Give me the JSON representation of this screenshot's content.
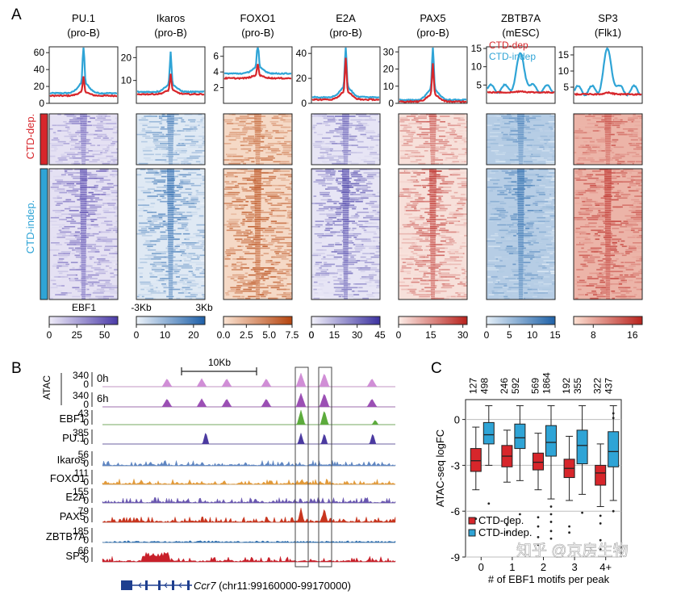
{
  "figure": {
    "panel_labels": [
      "A",
      "B",
      "C"
    ],
    "watermark": "知乎 @京房生物"
  },
  "panelA": {
    "columns": [
      {
        "factor": "PU.1",
        "cell": "(pro-B)",
        "yticks": [
          "0",
          "20",
          "40",
          "60"
        ],
        "ymax": 65,
        "cbar_ticks": [
          "0",
          "25",
          "50"
        ],
        "cbar_max": 62,
        "heat_color": "#4a3aa8",
        "heat_light": "#f2f0fa",
        "dep_peak": 27,
        "indep_peak": 62,
        "dep_base": 9,
        "indep_base": 12,
        "peak_shape": "sharp"
      },
      {
        "factor": "Ikaros",
        "cell": "(pro-B)",
        "yticks": [
          "10",
          "20"
        ],
        "ymax": 24,
        "cbar_ticks": [
          "0",
          "10",
          "20"
        ],
        "cbar_max": 24,
        "heat_color": "#1d5fa8",
        "heat_light": "#f0f5fb",
        "dep_peak": 11,
        "indep_peak": 19,
        "dep_base": 4,
        "indep_base": 5,
        "peak_shape": "sharp"
      },
      {
        "factor": "FOXO1",
        "cell": "(pro-B)",
        "yticks": [
          "2",
          "4",
          "6"
        ],
        "ymax": 7,
        "cbar_ticks": [
          "0.0",
          "2.5",
          "5.0",
          "7.5"
        ],
        "cbar_max": 7.5,
        "heat_color": "#b5440e",
        "heat_light": "#fbe6d6",
        "dep_peak": 4.7,
        "indep_peak": 7.2,
        "dep_base": 3.2,
        "indep_base": 3.8,
        "peak_shape": "sharp"
      },
      {
        "factor": "E2A",
        "cell": "(pro-B)",
        "yticks": [
          "0",
          "20",
          "40"
        ],
        "ymax": 44,
        "cbar_ticks": [
          "0",
          "15",
          "30",
          "45"
        ],
        "cbar_max": 45,
        "heat_color": "#3c32a0",
        "heat_light": "#f6f5fc",
        "dep_peak": 30,
        "indep_peak": 40,
        "dep_base": 3,
        "indep_base": 5,
        "peak_shape": "sharp"
      },
      {
        "factor": "PAX5",
        "cell": "(pro-B)",
        "yticks": [
          "0",
          "10",
          "20",
          "30"
        ],
        "ymax": 32,
        "cbar_ticks": [
          "0",
          "15",
          "30"
        ],
        "cbar_max": 32,
        "heat_color": "#b8221d",
        "heat_light": "#fdf0ea",
        "dep_peak": 19,
        "indep_peak": 29,
        "dep_base": 1,
        "indep_base": 2,
        "peak_shape": "sharp"
      },
      {
        "factor": "ZBTB7A",
        "cell": "(mESC)",
        "yticks": [
          "5",
          "10",
          "15"
        ],
        "ymax": 15,
        "cbar_ticks": [
          "0",
          "5",
          "10",
          "15"
        ],
        "cbar_max": 15,
        "heat_color": "#1f62a8",
        "heat_light": "#e8f1f9",
        "dep_peak": 3.3,
        "indep_peak": 13,
        "dep_base": 3,
        "indep_base": 4,
        "peak_shape": "broad"
      },
      {
        "factor": "SP3",
        "cell": "(Flk1)",
        "yticks": [
          "5",
          "10",
          "15"
        ],
        "ymax": 17,
        "cbar_ticks": [
          "8",
          "16"
        ],
        "cbar_max": 18,
        "heat_color": "#b8221d",
        "heat_light": "#fde4d6",
        "dep_peak": 3.3,
        "indep_peak": 16,
        "dep_base": 2.8,
        "indep_base": 4,
        "peak_shape": "broad"
      }
    ],
    "cbar_zero_labels": {
      "3": "0",
      "6": ""
    },
    "legend": [
      {
        "label": "CTD-dep",
        "color": "#d7262b"
      },
      {
        "label": "CTD-indep",
        "color": "#2fa4d6"
      }
    ],
    "group_labels": {
      "dep": "CTD-dep.",
      "indep": "CTD-indep."
    },
    "group_colors": {
      "dep": "#d7262b",
      "indep": "#2fa4d6"
    },
    "bottom_labels": {
      "ebf1": "EBF1",
      "left": "-3Kb",
      "right": "3Kb"
    }
  },
  "panelB": {
    "scale_label": "10Kb",
    "atac_label": "ATAC",
    "tracks": [
      {
        "name": "",
        "sub": "0h",
        "max": "340",
        "color": "#d08ed6"
      },
      {
        "name": "",
        "sub": "6h",
        "max": "340",
        "color": "#9b4fb4"
      },
      {
        "name": "EBF1",
        "sub": "",
        "max": "43",
        "color": "#5cab3c"
      },
      {
        "name": "PU.1",
        "sub": "",
        "max": "385",
        "color": "#4b3aa0"
      },
      {
        "name": "Ikaros",
        "sub": "",
        "max": "56",
        "color": "#5f86c2"
      },
      {
        "name": "FOXO1",
        "sub": "",
        "max": "111",
        "color": "#e29a3a"
      },
      {
        "name": "E2A",
        "sub": "",
        "max": "155",
        "color": "#6a58b0"
      },
      {
        "name": "PAX5",
        "sub": "",
        "max": "79",
        "color": "#c8351e"
      },
      {
        "name": "ZBTB7A",
        "sub": "",
        "max": "185",
        "color": "#2e6fb0"
      },
      {
        "name": "SP3",
        "sub": "",
        "max": "66",
        "color": "#c8202a"
      }
    ],
    "zero_label": "0",
    "gene": "Ccr7",
    "locus": " (chr11:99160000-99170000)"
  },
  "panelC": {
    "chart_data": {
      "type": "box",
      "xlabel": "# of EBF1 motifs per peak",
      "ylabel": "ATAC-seq logFC",
      "categories": [
        "0",
        "1",
        "2",
        "3",
        "4+"
      ],
      "ylim": [
        -9,
        1.3
      ],
      "yticks": [
        0,
        -3,
        -6,
        -9
      ],
      "counts": [
        [
          "127",
          "498"
        ],
        [
          "246",
          "592"
        ],
        [
          "569",
          "1864"
        ],
        [
          "192",
          "355"
        ],
        [
          "322",
          "437"
        ]
      ],
      "series": [
        {
          "name": "CTD-dep.",
          "color": "#d7262b",
          "boxes": [
            {
              "q1": -3.4,
              "med": -2.7,
              "q3": -1.9,
              "wlo": -4.6,
              "whi": -0.5,
              "out": [
                -6.5
              ]
            },
            {
              "q1": -3.1,
              "med": -2.4,
              "q3": -1.7,
              "wlo": -4.1,
              "whi": -0.7,
              "out": [
                -6.9,
                -7.4
              ]
            },
            {
              "q1": -3.3,
              "med": -2.8,
              "q3": -2.2,
              "wlo": -4.6,
              "whi": -0.9,
              "out": [
                -6.4,
                -7.0,
                -7.7,
                -8.2
              ]
            },
            {
              "q1": -3.8,
              "med": -3.2,
              "q3": -2.6,
              "wlo": -5.3,
              "whi": -1.1,
              "out": [
                -7.0,
                -7.4
              ]
            },
            {
              "q1": -4.3,
              "med": -3.5,
              "q3": -3.0,
              "wlo": -5.7,
              "whi": -1.6,
              "out": [
                -6.3,
                -6.8,
                -7.9,
                -8.5
              ]
            }
          ]
        },
        {
          "name": "CTD-indep.",
          "color": "#2fa4d6",
          "boxes": [
            {
              "q1": -1.6,
              "med": -1.0,
              "q3": -0.2,
              "wlo": -3.0,
              "whi": 0.9,
              "out": [
                -5.5
              ]
            },
            {
              "q1": -1.9,
              "med": -1.2,
              "q3": -0.3,
              "wlo": -4.0,
              "whi": 0.9,
              "out": [
                -6.2
              ]
            },
            {
              "q1": -2.4,
              "med": -1.5,
              "q3": -0.4,
              "wlo": -5.2,
              "whi": 0.9,
              "out": [
                -5.7,
                -6.2,
                -6.7,
                -7.3,
                -7.8
              ]
            },
            {
              "q1": -2.9,
              "med": -1.7,
              "q3": -0.7,
              "wlo": -4.9,
              "whi": 0.9,
              "out": [
                -6.1
              ]
            },
            {
              "q1": -3.1,
              "med": -2.1,
              "q3": -0.8,
              "wlo": -5.3,
              "whi": 0.9,
              "out": [
                0.4,
                0.1,
                -6.0
              ]
            }
          ]
        }
      ],
      "legend": [
        {
          "label": "CTD-dep.",
          "color": "#d7262b"
        },
        {
          "label": "CTD-indep.",
          "color": "#2fa4d6"
        }
      ],
      "legend_position": "bottom-left",
      "grid": true
    }
  }
}
